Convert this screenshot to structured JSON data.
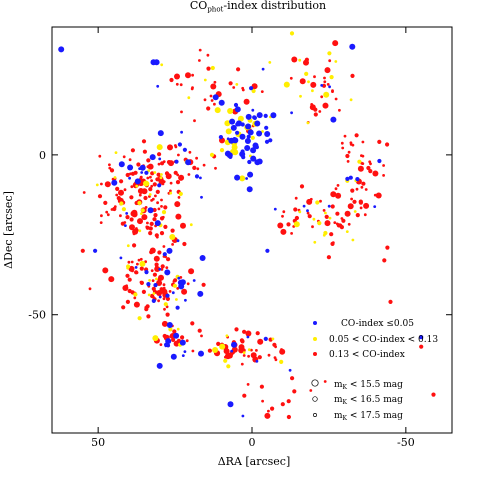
{
  "chart_data": {
    "type": "scatter",
    "title": {
      "main": "CO",
      "sub": "phot",
      "rest": "-index distribution"
    },
    "xlabel": "ΔRA [arcsec]",
    "ylabel": "ΔDec [arcsec]",
    "xlim": [
      65,
      -65
    ],
    "ylim": [
      -87,
      40
    ],
    "x_reversed": true,
    "xticks": [
      50,
      0,
      -50
    ],
    "xtick_labels": [
      "50",
      "0",
      "-50"
    ],
    "yticks": [
      0,
      -50
    ],
    "ytick_labels": [
      "0",
      "-50"
    ],
    "grid": false,
    "legend_position": "bottom-right",
    "colors": {
      "blue": "#1a1aff",
      "yellow": "#ffee00",
      "red": "#ff1010"
    },
    "legend": {
      "colors": [
        {
          "label": "CO-index ≤0.05",
          "color": "#1a1aff"
        },
        {
          "label": "0.05 < CO-index < 0.13",
          "color": "#ffee00"
        },
        {
          "label": "0.13 < CO-index",
          "color": "#ff1010"
        }
      ],
      "sizes": [
        {
          "base": "m",
          "sub": "K",
          "rest": " < 15.5 mag"
        },
        {
          "base": "m",
          "sub": "K",
          "rest": " < 16.5 mag"
        },
        {
          "base": "m",
          "sub": "K",
          "rest": " < 17.5 mag"
        }
      ]
    },
    "clusters": [
      {
        "name": "nucleus",
        "n": 70,
        "cx": 2,
        "cy": 5,
        "sx": 4,
        "sy": 6,
        "mix": [
          0.65,
          0.2,
          0.15
        ],
        "big": 0.55
      },
      {
        "name": "east-arm-upper",
        "n": 90,
        "cx": 34,
        "cy": -8,
        "sx": 5,
        "sy": 5,
        "mix": [
          0.12,
          0.14,
          0.74
        ],
        "big": 0.2
      },
      {
        "name": "east-arm-mid",
        "n": 70,
        "cx": 33,
        "cy": -23,
        "sx": 5,
        "sy": 6,
        "mix": [
          0.15,
          0.15,
          0.7
        ],
        "big": 0.2
      },
      {
        "name": "east-arm-lower",
        "n": 70,
        "cx": 33,
        "cy": -40,
        "sx": 6,
        "sy": 5,
        "mix": [
          0.15,
          0.12,
          0.73
        ],
        "big": 0.2
      },
      {
        "name": "far-east",
        "n": 35,
        "cx": 45,
        "cy": -10,
        "sx": 4,
        "sy": 5,
        "mix": [
          0.08,
          0.12,
          0.8
        ],
        "big": 0.1
      },
      {
        "name": "southeast-knot",
        "n": 40,
        "cx": 25,
        "cy": -41,
        "sx": 4,
        "sy": 4,
        "mix": [
          0.3,
          0.1,
          0.6
        ],
        "big": 0.35
      },
      {
        "name": "south-arc",
        "n": 55,
        "cx": 5,
        "cy": -61,
        "sx": 7,
        "sy": 3,
        "mix": [
          0.2,
          0.15,
          0.65
        ],
        "big": 0.3
      },
      {
        "name": "north-arm",
        "n": 50,
        "cx": 10,
        "cy": 22,
        "sx": 12,
        "sy": 6,
        "mix": [
          0.12,
          0.18,
          0.7
        ],
        "big": 0.15
      },
      {
        "name": "northwest-arm",
        "n": 45,
        "cx": -23,
        "cy": 21,
        "sx": 5,
        "sy": 8,
        "mix": [
          0.1,
          0.15,
          0.75
        ],
        "big": 0.15
      },
      {
        "name": "west-arm-upper",
        "n": 55,
        "cx": -35,
        "cy": -6,
        "sx": 4,
        "sy": 7,
        "mix": [
          0.1,
          0.12,
          0.78
        ],
        "big": 0.15
      },
      {
        "name": "west-arm-lower",
        "n": 55,
        "cx": -22,
        "cy": -19,
        "sx": 7,
        "sy": 4,
        "mix": [
          0.1,
          0.15,
          0.75
        ],
        "big": 0.15
      },
      {
        "name": "east-inner",
        "n": 35,
        "cx": 22,
        "cy": -3,
        "sx": 5,
        "sy": 6,
        "mix": [
          0.15,
          0.15,
          0.7
        ],
        "big": 0.15
      },
      {
        "name": "southeast-lower",
        "n": 30,
        "cx": 26,
        "cy": -58,
        "sx": 3,
        "sy": 3,
        "mix": [
          0.25,
          0.15,
          0.6
        ],
        "big": 0.3
      },
      {
        "name": "south-spur",
        "n": 22,
        "cx": -5,
        "cy": -72,
        "sx": 5,
        "sy": 7,
        "mix": [
          0.1,
          0.1,
          0.8
        ],
        "big": 0.05
      }
    ],
    "field_points": [
      {
        "x": 62,
        "y": 33,
        "c": 0,
        "s": 2
      },
      {
        "x": 32,
        "y": 29,
        "c": 0,
        "s": 2
      },
      {
        "x": 31,
        "y": 29,
        "c": 0,
        "s": 2
      },
      {
        "x": 30,
        "y": -66,
        "c": 0,
        "s": 2
      },
      {
        "x": 7,
        "y": -78,
        "c": 0,
        "s": 2
      },
      {
        "x": -43,
        "y": -33,
        "c": 2,
        "s": 1
      },
      {
        "x": -45,
        "y": -46,
        "c": 2,
        "s": 1
      },
      {
        "x": -55,
        "y": -60,
        "c": 2,
        "s": 1
      },
      {
        "x": -59,
        "y": -75,
        "c": 2,
        "s": 1
      },
      {
        "x": -44,
        "y": -29,
        "c": 2,
        "s": 1
      },
      {
        "x": 51,
        "y": -30,
        "c": 0,
        "s": 1
      },
      {
        "x": 17,
        "y": -55,
        "c": 2,
        "s": 1
      },
      {
        "x": -25,
        "y": -32,
        "c": 2,
        "s": 1
      },
      {
        "x": -10,
        "y": -78,
        "c": 2,
        "s": 1
      },
      {
        "x": -12,
        "y": -82,
        "c": 2,
        "s": 1
      },
      {
        "x": -55,
        "y": -57,
        "c": 0,
        "s": 1
      },
      {
        "x": 13,
        "y": 0,
        "c": 1,
        "s": 1
      },
      {
        "x": -13,
        "y": 38,
        "c": 1,
        "s": 1
      },
      {
        "x": -5,
        "y": -30,
        "c": 0,
        "s": 1
      },
      {
        "x": 55,
        "y": -30,
        "c": 2,
        "s": 1
      }
    ]
  }
}
